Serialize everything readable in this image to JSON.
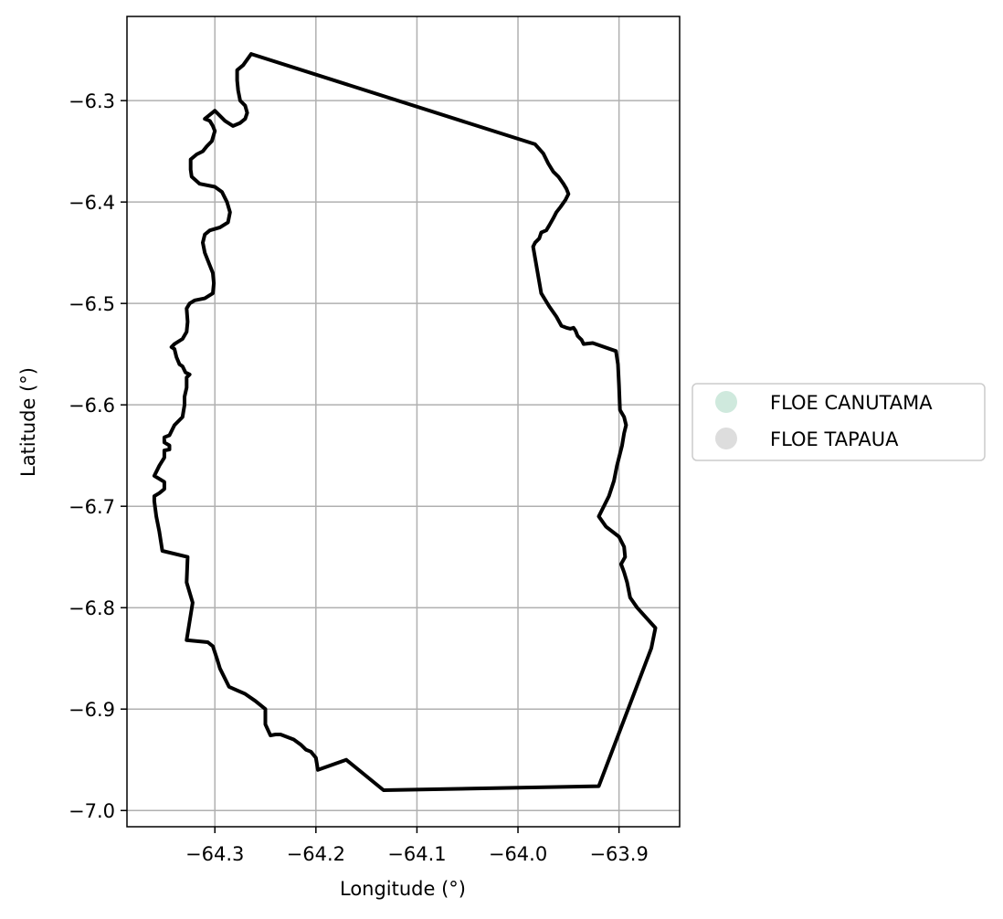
{
  "chart_data": {
    "type": "map",
    "xlabel": "Longitude (°)",
    "ylabel": "Latitude (°)",
    "xlim": [
      -64.387,
      -63.84
    ],
    "ylim": [
      -7.016,
      -6.217
    ],
    "grid": true,
    "x_ticks": [
      {
        "value": -64.3,
        "label": "−64.3"
      },
      {
        "value": -64.2,
        "label": "−64.2"
      },
      {
        "value": -64.1,
        "label": "−64.1"
      },
      {
        "value": -64.0,
        "label": "−64.0"
      },
      {
        "value": -63.9,
        "label": "−63.9"
      }
    ],
    "y_ticks": [
      {
        "value": -6.3,
        "label": "−6.3"
      },
      {
        "value": -6.4,
        "label": "−6.4"
      },
      {
        "value": -6.5,
        "label": "−6.5"
      },
      {
        "value": -6.6,
        "label": "−6.6"
      },
      {
        "value": -6.7,
        "label": "−6.7"
      },
      {
        "value": -6.8,
        "label": "−6.8"
      },
      {
        "value": -6.9,
        "label": "−6.9"
      },
      {
        "value": -7.0,
        "label": "−7.0"
      }
    ],
    "legend_position": "right",
    "legend": [
      {
        "label": "FLOE CANUTAMA",
        "color": "#cfe9dd"
      },
      {
        "label": "FLOE TAPAUA",
        "color": "#dddddd"
      }
    ],
    "boundary_color": "#000000",
    "boundary": [
      [
        -64.264,
        -6.254
      ],
      [
        -63.983,
        -6.343
      ],
      [
        -63.975,
        -6.352
      ],
      [
        -63.97,
        -6.362
      ],
      [
        -63.965,
        -6.37
      ],
      [
        -63.96,
        -6.375
      ],
      [
        -63.955,
        -6.382
      ],
      [
        -63.952,
        -6.387
      ],
      [
        -63.95,
        -6.392
      ],
      [
        -63.953,
        -6.398
      ],
      [
        -63.958,
        -6.405
      ],
      [
        -63.962,
        -6.41
      ],
      [
        -63.965,
        -6.416
      ],
      [
        -63.969,
        -6.423
      ],
      [
        -63.972,
        -6.428
      ],
      [
        -63.977,
        -6.43
      ],
      [
        -63.979,
        -6.436
      ],
      [
        -63.983,
        -6.44
      ],
      [
        -63.985,
        -6.444
      ],
      [
        -63.977,
        -6.49
      ],
      [
        -63.969,
        -6.503
      ],
      [
        -63.962,
        -6.513
      ],
      [
        -63.957,
        -6.522
      ],
      [
        -63.952,
        -6.524
      ],
      [
        -63.948,
        -6.525
      ],
      [
        -63.945,
        -6.524
      ],
      [
        -63.943,
        -6.527
      ],
      [
        -63.941,
        -6.532
      ],
      [
        -63.937,
        -6.536
      ],
      [
        -63.935,
        -6.54
      ],
      [
        -63.926,
        -6.539
      ],
      [
        -63.903,
        -6.547
      ],
      [
        -63.901,
        -6.56
      ],
      [
        -63.9,
        -6.58
      ],
      [
        -63.899,
        -6.605
      ],
      [
        -63.895,
        -6.612
      ],
      [
        -63.893,
        -6.62
      ],
      [
        -63.895,
        -6.628
      ],
      [
        -63.897,
        -6.64
      ],
      [
        -63.902,
        -6.66
      ],
      [
        -63.905,
        -6.675
      ],
      [
        -63.91,
        -6.69
      ],
      [
        -63.92,
        -6.71
      ],
      [
        -63.913,
        -6.72
      ],
      [
        -63.9,
        -6.73
      ],
      [
        -63.895,
        -6.74
      ],
      [
        -63.894,
        -6.75
      ],
      [
        -63.898,
        -6.757
      ],
      [
        -63.895,
        -6.765
      ],
      [
        -63.892,
        -6.775
      ],
      [
        -63.889,
        -6.79
      ],
      [
        -63.882,
        -6.8
      ],
      [
        -63.864,
        -6.82
      ],
      [
        -63.868,
        -6.84
      ],
      [
        -63.92,
        -6.976
      ],
      [
        -64.133,
        -6.98
      ],
      [
        -64.17,
        -6.95
      ],
      [
        -64.198,
        -6.96
      ],
      [
        -64.2,
        -6.948
      ],
      [
        -64.205,
        -6.942
      ],
      [
        -64.21,
        -6.94
      ],
      [
        -64.215,
        -6.935
      ],
      [
        -64.222,
        -6.93
      ],
      [
        -64.235,
        -6.925
      ],
      [
        -64.24,
        -6.925
      ],
      [
        -64.245,
        -6.926
      ],
      [
        -64.25,
        -6.915
      ],
      [
        -64.25,
        -6.9
      ],
      [
        -64.26,
        -6.892
      ],
      [
        -64.27,
        -6.885
      ],
      [
        -64.286,
        -6.878
      ],
      [
        -64.29,
        -6.87
      ],
      [
        -64.295,
        -6.86
      ],
      [
        -64.298,
        -6.85
      ],
      [
        -64.302,
        -6.838
      ],
      [
        -64.307,
        -6.834
      ],
      [
        -64.328,
        -6.832
      ],
      [
        -64.322,
        -6.795
      ],
      [
        -64.328,
        -6.775
      ],
      [
        -64.327,
        -6.75
      ],
      [
        -64.352,
        -6.744
      ],
      [
        -64.355,
        -6.725
      ],
      [
        -64.358,
        -6.71
      ],
      [
        -64.36,
        -6.695
      ],
      [
        -64.36,
        -6.69
      ],
      [
        -64.355,
        -6.687
      ],
      [
        -64.35,
        -6.683
      ],
      [
        -64.35,
        -6.676
      ],
      [
        -64.355,
        -6.673
      ],
      [
        -64.36,
        -6.67
      ],
      [
        -64.355,
        -6.66
      ],
      [
        -64.35,
        -6.652
      ],
      [
        -64.35,
        -6.645
      ],
      [
        -64.345,
        -6.644
      ],
      [
        -64.345,
        -6.64
      ],
      [
        -64.35,
        -6.637
      ],
      [
        -64.35,
        -6.632
      ],
      [
        -64.345,
        -6.63
      ],
      [
        -64.34,
        -6.62
      ],
      [
        -64.332,
        -6.612
      ],
      [
        -64.33,
        -6.6
      ],
      [
        -64.33,
        -6.592
      ],
      [
        -64.328,
        -6.583
      ],
      [
        -64.328,
        -6.573
      ],
      [
        -64.325,
        -6.57
      ],
      [
        -64.329,
        -6.568
      ],
      [
        -64.332,
        -6.562
      ],
      [
        -64.335,
        -6.56
      ],
      [
        -64.338,
        -6.553
      ],
      [
        -64.34,
        -6.545
      ],
      [
        -64.343,
        -6.543
      ],
      [
        -64.34,
        -6.54
      ],
      [
        -64.332,
        -6.535
      ],
      [
        -64.328,
        -6.528
      ],
      [
        -64.327,
        -6.518
      ],
      [
        -64.328,
        -6.505
      ],
      [
        -64.325,
        -6.5
      ],
      [
        -64.32,
        -6.497
      ],
      [
        -64.31,
        -6.495
      ],
      [
        -64.302,
        -6.49
      ],
      [
        -64.301,
        -6.48
      ],
      [
        -64.302,
        -6.47
      ],
      [
        -64.306,
        -6.46
      ],
      [
        -64.31,
        -6.45
      ],
      [
        -64.312,
        -6.44
      ],
      [
        -64.31,
        -6.432
      ],
      [
        -64.305,
        -6.428
      ],
      [
        -64.295,
        -6.425
      ],
      [
        -64.287,
        -6.42
      ],
      [
        -64.285,
        -6.41
      ],
      [
        -64.288,
        -6.4
      ],
      [
        -64.293,
        -6.39
      ],
      [
        -64.3,
        -6.385
      ],
      [
        -64.315,
        -6.382
      ],
      [
        -64.323,
        -6.375
      ],
      [
        -64.324,
        -6.368
      ],
      [
        -64.324,
        -6.358
      ],
      [
        -64.318,
        -6.353
      ],
      [
        -64.312,
        -6.35
      ],
      [
        -64.308,
        -6.345
      ],
      [
        -64.303,
        -6.34
      ],
      [
        -64.3,
        -6.33
      ],
      [
        -64.302,
        -6.325
      ],
      [
        -64.305,
        -6.32
      ],
      [
        -64.31,
        -6.318
      ],
      [
        -64.3,
        -6.31
      ],
      [
        -64.295,
        -6.315
      ],
      [
        -64.29,
        -6.32
      ],
      [
        -64.282,
        -6.325
      ],
      [
        -64.275,
        -6.322
      ],
      [
        -64.27,
        -6.318
      ],
      [
        -64.268,
        -6.312
      ],
      [
        -64.27,
        -6.305
      ],
      [
        -64.275,
        -6.3
      ],
      [
        -64.277,
        -6.29
      ],
      [
        -64.278,
        -6.28
      ],
      [
        -64.278,
        -6.27
      ],
      [
        -64.272,
        -6.265
      ],
      [
        -64.264,
        -6.254
      ]
    ]
  }
}
